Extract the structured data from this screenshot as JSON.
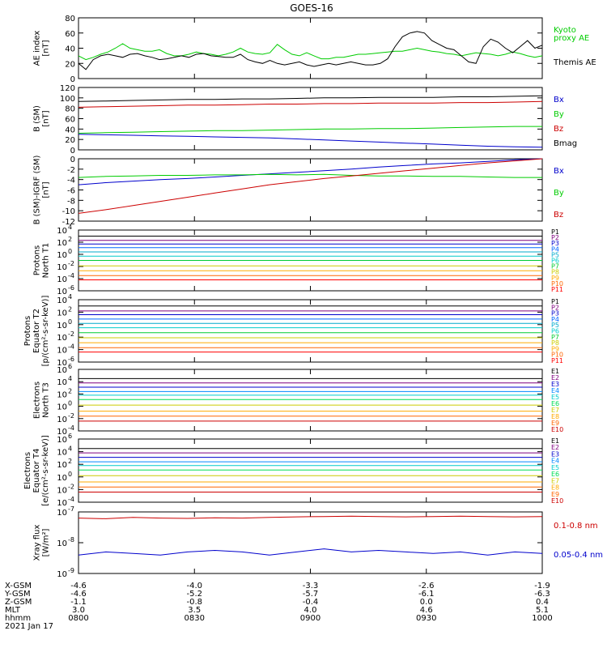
{
  "title": "GOES-16",
  "colors": {
    "black": "#000000",
    "blue": "#0000cc",
    "green": "#00cc00",
    "red": "#cc0000",
    "P": [
      "#000000",
      "#7f007f",
      "#0000cc",
      "#0066ff",
      "#00aacc",
      "#00cccc",
      "#00cc33",
      "#cccc00",
      "#ffaa00",
      "#ff6600",
      "#ff0000",
      "#aa0000"
    ],
    "E": [
      "#000000",
      "#7f007f",
      "#0000cc",
      "#0088ff",
      "#00cccc",
      "#00dd55",
      "#cccc00",
      "#ffaa00",
      "#ff6600",
      "#cc0000"
    ]
  },
  "chart_data": [
    {
      "type": "line",
      "ylabel": "AE index\n[nT]",
      "ylim": [
        0,
        80
      ],
      "yticks": [
        "0",
        "20",
        "40",
        "60",
        "80"
      ],
      "series": [
        {
          "name": "Kyoto\nproxy AE",
          "color": "green",
          "values": [
            30,
            25,
            28,
            32,
            35,
            40,
            46,
            40,
            38,
            36,
            36,
            38,
            33,
            30,
            30,
            32,
            35,
            33,
            32,
            30,
            32,
            35,
            40,
            35,
            33,
            32,
            34,
            45,
            38,
            32,
            30,
            34,
            30,
            26,
            26,
            28,
            28,
            30,
            32,
            32,
            33,
            34,
            35,
            36,
            36,
            38,
            40,
            38,
            36,
            35,
            33,
            32,
            30,
            32,
            34,
            33,
            32,
            30,
            32,
            35,
            33,
            30,
            28,
            30
          ]
        },
        {
          "name": "Themis AE",
          "color": "black",
          "values": [
            20,
            12,
            25,
            30,
            32,
            30,
            28,
            32,
            33,
            30,
            28,
            25,
            26,
            28,
            30,
            28,
            32,
            33,
            30,
            29,
            28,
            28,
            32,
            25,
            22,
            20,
            24,
            20,
            18,
            20,
            22,
            18,
            16,
            18,
            20,
            18,
            20,
            22,
            20,
            18,
            18,
            20,
            26,
            42,
            55,
            60,
            62,
            60,
            50,
            45,
            40,
            38,
            30,
            22,
            20,
            42,
            52,
            48,
            40,
            34,
            42,
            50,
            40,
            44
          ]
        }
      ],
      "ylog": false
    },
    {
      "type": "line",
      "ylabel": "B (SM)\n[nT]",
      "ylim": [
        0,
        120
      ],
      "yticks": [
        "0",
        "20",
        "40",
        "60",
        "80",
        "100",
        "120"
      ],
      "series": [
        {
          "name": "Bx",
          "color": "blue",
          "values": [
            30,
            29,
            28,
            27,
            26,
            25,
            24,
            23,
            21,
            19,
            17,
            15,
            13,
            11,
            9,
            7,
            6,
            5
          ]
        },
        {
          "name": "By",
          "color": "green",
          "values": [
            32,
            33,
            34,
            35,
            36,
            37,
            37,
            38,
            39,
            40,
            40,
            41,
            41,
            42,
            43,
            44,
            45,
            45
          ]
        },
        {
          "name": "Bz",
          "color": "red",
          "values": [
            82,
            83,
            84,
            85,
            86,
            86,
            87,
            88,
            88,
            89,
            89,
            90,
            90,
            90,
            91,
            91,
            92,
            93
          ]
        },
        {
          "name": "Bmag",
          "color": "black",
          "values": [
            93,
            94,
            95,
            96,
            97,
            97,
            98,
            98,
            99,
            100,
            100,
            101,
            101,
            101,
            102,
            102,
            103,
            104
          ]
        }
      ],
      "ylog": false
    },
    {
      "type": "line",
      "ylabel": "B (SM)-IGRF (SM)\n[nT]",
      "ylim": [
        -12,
        0
      ],
      "yticks": [
        "-12",
        "-10",
        "-8",
        "-6",
        "-4",
        "-2",
        "0"
      ],
      "series": [
        {
          "name": "Bx",
          "color": "blue",
          "values": [
            -5.0,
            -4.6,
            -4.3,
            -4.0,
            -3.8,
            -3.5,
            -3.2,
            -2.9,
            -2.6,
            -2.3,
            -2.0,
            -1.6,
            -1.3,
            -1.0,
            -0.8,
            -0.5,
            -0.2,
            0.0
          ]
        },
        {
          "name": "By",
          "color": "green",
          "values": [
            -3.6,
            -3.4,
            -3.3,
            -3.2,
            -3.2,
            -3.1,
            -3.1,
            -3.0,
            -3.1,
            -3.0,
            -3.2,
            -3.3,
            -3.3,
            -3.4,
            -3.4,
            -3.5,
            -3.6,
            -3.6
          ]
        },
        {
          "name": "Bz",
          "color": "red",
          "values": [
            -10.5,
            -9.8,
            -9.0,
            -8.2,
            -7.4,
            -6.6,
            -5.8,
            -5.0,
            -4.4,
            -3.8,
            -3.3,
            -2.8,
            -2.3,
            -1.8,
            -1.3,
            -0.8,
            -0.4,
            0.0
          ]
        }
      ],
      "ylog": false
    },
    {
      "type": "line",
      "ylabel": "Protons\nNorth T1",
      "ylim": [
        -6,
        4
      ],
      "yticks": [
        "10^-6",
        "10^-4",
        "10^-2",
        "10^0",
        "10^2",
        "10^4"
      ],
      "ylog": true,
      "labels": [
        "P1",
        "P2",
        "P3",
        "P4",
        "P5",
        "P6",
        "P7",
        "P8",
        "P9",
        "P10",
        "P11"
      ],
      "levels": [
        3.0,
        2.3,
        1.7,
        1.1,
        0.4,
        -0.3,
        -1.0,
        -1.9,
        -2.7,
        -3.5,
        -4.2
      ]
    },
    {
      "type": "line",
      "ylabel": "Protons\nEquator T2\n[p/(cm²-s-sr-keV)]",
      "ylim": [
        -6,
        4
      ],
      "yticks": [
        "10^-6",
        "10^-4",
        "10^-2",
        "10^0",
        "10^2",
        "10^4"
      ],
      "ylog": true,
      "labels": [
        "P1",
        "P2",
        "P3",
        "P4",
        "P5",
        "P6",
        "P7",
        "P8",
        "P9",
        "P10",
        "P11"
      ],
      "levels": [
        3.0,
        2.2,
        1.6,
        0.9,
        0.2,
        -0.5,
        -1.3,
        -2.1,
        -2.9,
        -3.7,
        -4.4
      ]
    },
    {
      "type": "line",
      "ylabel": "Electrons\nNorth T3",
      "ylim": [
        -4,
        6
      ],
      "yticks": [
        "10^-4",
        "10^-2",
        "10^0",
        "10^2",
        "10^4",
        "10^6"
      ],
      "ylog": true,
      "labels": [
        "E1",
        "E2",
        "E3",
        "E4",
        "E5",
        "E6",
        "E7",
        "E8",
        "E9",
        "E10"
      ],
      "levels": [
        4.5,
        3.8,
        3.1,
        2.4,
        1.8,
        1.1,
        0.2,
        -0.8,
        -1.6,
        -2.4
      ]
    },
    {
      "type": "line",
      "ylabel": "Electrons\nEquator T4\n[e/(cm²-s-sr-keV)]",
      "ylim": [
        -4,
        6
      ],
      "yticks": [
        "10^-4",
        "10^-2",
        "10^0",
        "10^2",
        "10^4",
        "10^6"
      ],
      "ylog": true,
      "labels": [
        "E1",
        "E2",
        "E3",
        "E4",
        "E5",
        "E6",
        "E7",
        "E8",
        "E9",
        "E10"
      ],
      "levels": [
        4.5,
        3.8,
        3.1,
        2.4,
        1.8,
        1.1,
        0.2,
        -0.8,
        -1.6,
        -2.4
      ]
    },
    {
      "type": "line",
      "ylabel": "Xray flux\n[W/m²]",
      "ylim": [
        -9,
        -7
      ],
      "yticks": [
        "10^-9",
        "10^-8",
        "10^-7"
      ],
      "ylog": true,
      "series": [
        {
          "name": "0.1-0.8 nm",
          "color": "red",
          "values": [
            -7.2,
            -7.22,
            -7.18,
            -7.2,
            -7.21,
            -7.19,
            -7.2,
            -7.18,
            -7.16,
            -7.15,
            -7.14,
            -7.15,
            -7.16,
            -7.15,
            -7.14,
            -7.15,
            -7.16,
            -7.15
          ]
        },
        {
          "name": "0.05-0.4 nm",
          "color": "blue",
          "values": [
            -8.4,
            -8.3,
            -8.35,
            -8.4,
            -8.3,
            -8.25,
            -8.3,
            -8.4,
            -8.3,
            -8.2,
            -8.3,
            -8.25,
            -8.3,
            -8.35,
            -8.3,
            -8.4,
            -8.3,
            -8.35
          ]
        }
      ]
    }
  ],
  "x_axis": {
    "rows": [
      "X-GSM",
      "Y-GSM",
      "Z-GSM",
      "MLT",
      "hhmm"
    ],
    "ticks": [
      {
        "values": [
          "-4.6",
          "-4.6",
          "-1.1",
          "3.0",
          "0800"
        ]
      },
      {
        "values": [
          "-4.0",
          "-5.2",
          "-0.8",
          "3.5",
          "0830"
        ]
      },
      {
        "values": [
          "-3.3",
          "-5.7",
          "-0.4",
          "4.0",
          "0900"
        ]
      },
      {
        "values": [
          "-2.6",
          "-6.1",
          "0.0",
          "4.6",
          "0930"
        ]
      },
      {
        "values": [
          "-1.9",
          "-6.3",
          "0.4",
          "5.1",
          "1000"
        ]
      }
    ],
    "date": "2021 Jan 17"
  }
}
